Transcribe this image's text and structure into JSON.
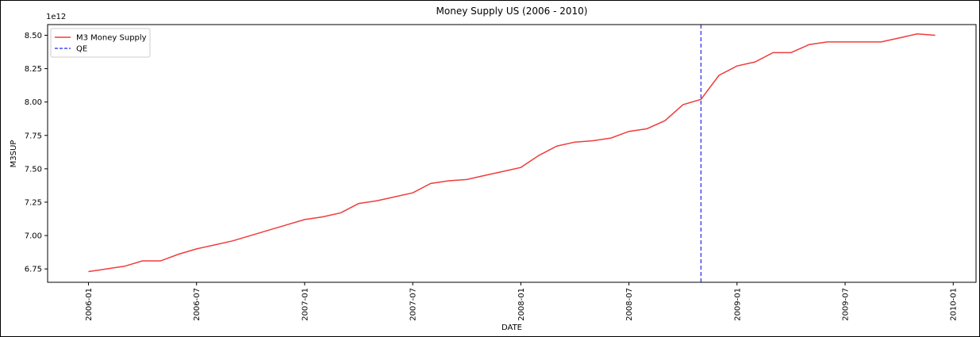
{
  "chart_data": {
    "type": "line",
    "title": "Money Supply US (2006 - 2010)",
    "x_label": "DATE",
    "y_label": "M3SUP",
    "y_offset_label": "1e12",
    "x": [
      "2006-01",
      "2006-02",
      "2006-03",
      "2006-04",
      "2006-05",
      "2006-06",
      "2006-07",
      "2006-08",
      "2006-09",
      "2006-10",
      "2006-11",
      "2006-12",
      "2007-01",
      "2007-02",
      "2007-03",
      "2007-04",
      "2007-05",
      "2007-06",
      "2007-07",
      "2007-08",
      "2007-09",
      "2007-10",
      "2007-11",
      "2007-12",
      "2008-01",
      "2008-02",
      "2008-03",
      "2008-04",
      "2008-05",
      "2008-06",
      "2008-07",
      "2008-08",
      "2008-09",
      "2008-10",
      "2008-11",
      "2008-12",
      "2009-01",
      "2009-02",
      "2009-03",
      "2009-04",
      "2009-05",
      "2009-06",
      "2009-07",
      "2009-08",
      "2009-09",
      "2009-10",
      "2009-11",
      "2009-12"
    ],
    "series": [
      {
        "name": "M3 Money Supply",
        "color": "#f03c3c",
        "values": [
          6.73,
          6.75,
          6.77,
          6.81,
          6.81,
          6.86,
          6.9,
          6.93,
          6.96,
          7.0,
          7.04,
          7.08,
          7.12,
          7.14,
          7.17,
          7.24,
          7.26,
          7.29,
          7.32,
          7.39,
          7.41,
          7.42,
          7.45,
          7.48,
          7.51,
          7.6,
          7.67,
          7.7,
          7.71,
          7.73,
          7.78,
          7.8,
          7.86,
          7.98,
          8.02,
          8.2,
          8.27,
          8.3,
          8.37,
          8.37,
          8.43,
          8.45,
          8.45,
          8.45,
          8.45,
          8.48,
          8.51,
          8.5
        ]
      }
    ],
    "vlines": [
      {
        "name": "QE",
        "x": "2008-11",
        "color": "#4a4aee",
        "style": "dashed"
      }
    ],
    "xlim": [
      "2005-10-23",
      "2010-02-09"
    ],
    "xticks": [
      "2006-01",
      "2006-07",
      "2007-01",
      "2007-07",
      "2008-01",
      "2008-07",
      "2009-01",
      "2009-07",
      "2010-01"
    ],
    "ylim": [
      6.65,
      8.58
    ],
    "yticks": [
      6.75,
      {
        "value": 7,
        "label": "7.00"
      },
      7.25,
      {
        "value": 7.5,
        "label": "7.50"
      },
      7.75,
      {
        "value": 8,
        "label": "8.00"
      },
      8.25,
      {
        "value": 8.5,
        "label": "8.50"
      }
    ],
    "legend": "upper left",
    "grid": false
  }
}
